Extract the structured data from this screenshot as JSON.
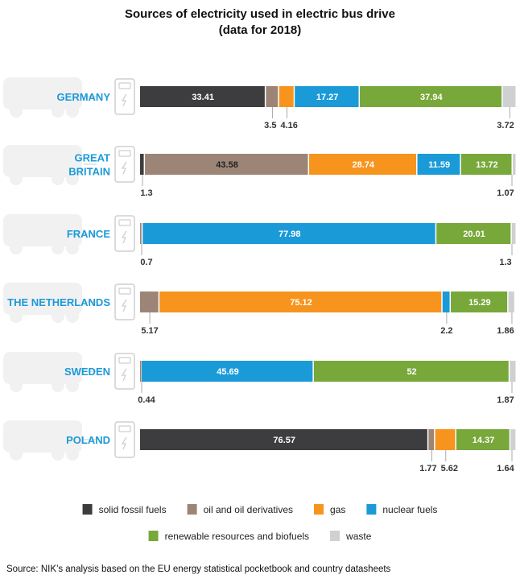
{
  "chart_data": {
    "type": "bar",
    "orientation": "horizontal",
    "stacked": true,
    "title": "Sources of electricity used in electric bus drive",
    "subtitle": "(data for 2018)",
    "categories": [
      [
        "GERMANY"
      ],
      [
        "GREAT",
        "BRITAIN"
      ],
      [
        "FRANCE"
      ],
      [
        "THE NETHERLANDS"
      ],
      [
        "SWEDEN"
      ],
      [
        "POLAND"
      ]
    ],
    "series": [
      {
        "name": "solid fossil fuels",
        "color": "#3d3d3f",
        "values": [
          33.41,
          1.3,
          0,
          0,
          0,
          76.57
        ]
      },
      {
        "name": "oil and oil derivatives",
        "color": "#9c8577",
        "values": [
          3.5,
          43.58,
          0.7,
          5.17,
          0.44,
          1.77
        ]
      },
      {
        "name": "gas",
        "color": "#f7941d",
        "values": [
          4.16,
          28.74,
          0,
          75.12,
          0,
          5.62
        ]
      },
      {
        "name": "nuclear fuels",
        "color": "#1b9ad8",
        "values": [
          17.27,
          11.59,
          77.98,
          2.2,
          45.69,
          0
        ]
      },
      {
        "name": "renewable resources and biofuels",
        "color": "#78a73a",
        "values": [
          37.94,
          13.72,
          20.01,
          15.29,
          52,
          14.37
        ]
      },
      {
        "name": "waste",
        "color": "#cfd0d2",
        "values": [
          3.72,
          1.07,
          1.3,
          1.86,
          1.87,
          1.64
        ]
      }
    ],
    "xlim": [
      0,
      100
    ],
    "grid": false,
    "legend_position": "bottom"
  },
  "source": "Source: NIK’s analysis based on the EU energy statistical pocketbook and country datasheets"
}
